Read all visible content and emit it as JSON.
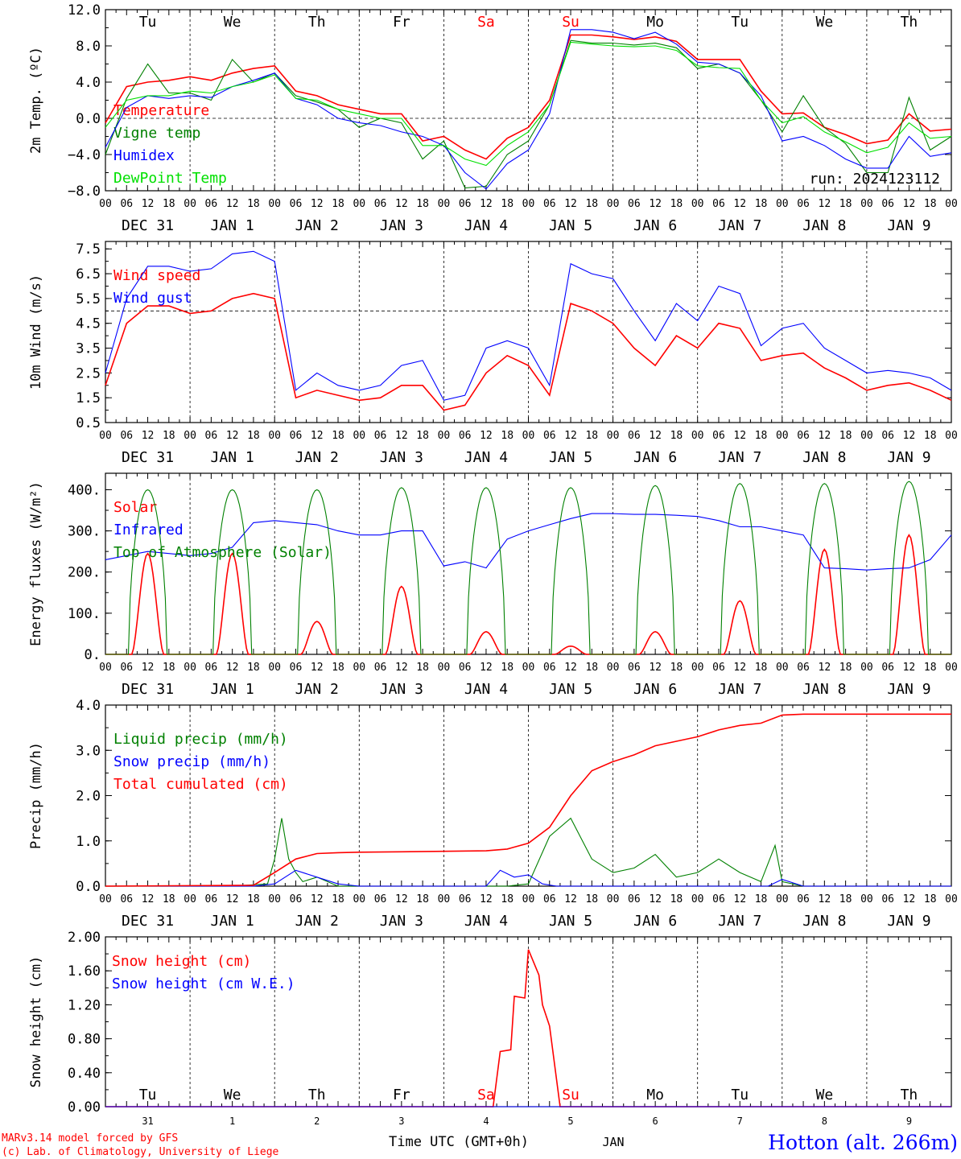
{
  "colors": {
    "red": "#ff0000",
    "green": "#008000",
    "blue": "#0000ff",
    "lime": "#00e000",
    "black": "#000000"
  },
  "days": [
    {
      "date": "DEC 31",
      "abbr": "Tu",
      "num": "31",
      "weekend": false
    },
    {
      "date": "JAN  1",
      "abbr": "We",
      "num": "1",
      "weekend": false
    },
    {
      "date": "JAN  2",
      "abbr": "Th",
      "num": "2",
      "weekend": false
    },
    {
      "date": "JAN  3",
      "abbr": "Fr",
      "num": "3",
      "weekend": false
    },
    {
      "date": "JAN  4",
      "abbr": "Sa",
      "num": "4",
      "weekend": true
    },
    {
      "date": "JAN  5",
      "abbr": "Su",
      "num": "5",
      "weekend": true
    },
    {
      "date": "JAN  6",
      "abbr": "Mo",
      "num": "6",
      "weekend": false
    },
    {
      "date": "JAN  7",
      "abbr": "Tu",
      "num": "7",
      "weekend": false
    },
    {
      "date": "JAN  8",
      "abbr": "We",
      "num": "8",
      "weekend": false
    },
    {
      "date": "JAN  9",
      "abbr": "Th",
      "num": "9",
      "weekend": false
    }
  ],
  "hour_ticks": [
    "00",
    "06",
    "12",
    "18"
  ],
  "run_label": "run: 2024123112",
  "footer": {
    "model": "MARv3.14 model forced by GFS",
    "credit": "(c) Lab. of Climatology, University of Liege",
    "axis_title": "Time UTC (GMT+0h)",
    "month": "JAN",
    "station": "Hotton (alt. 266m)"
  },
  "chart_data": [
    {
      "type": "line",
      "ylabel": "2m Temp. (ºC)",
      "ylim": [
        -8,
        12
      ],
      "yticks": [
        -8,
        -4,
        0,
        4,
        8,
        12
      ],
      "ytick_labels": [
        "−8.0",
        "−4.0",
        "0.0",
        "4.0",
        "8.0",
        "12.0"
      ],
      "ref_line": 0,
      "x": [
        0,
        6,
        12,
        18,
        24,
        30,
        36,
        42,
        48,
        54,
        60,
        66,
        72,
        78,
        84,
        90,
        96,
        102,
        108,
        114,
        120,
        126,
        132,
        138,
        144,
        150,
        156,
        162,
        168,
        174,
        180,
        186,
        192,
        198,
        204,
        210,
        216,
        222,
        228,
        234,
        240
      ],
      "series": [
        {
          "name": "Temperature",
          "color": "#ff0000",
          "values": [
            -0.5,
            3.5,
            4,
            4.2,
            4.6,
            4.2,
            5,
            5.5,
            5.8,
            3,
            2.5,
            1.5,
            1,
            0.5,
            0.5,
            -2.5,
            -2,
            -3.5,
            -4.5,
            -2.2,
            -1,
            2,
            9.2,
            9.2,
            9,
            8.7,
            9,
            8.5,
            6.5,
            6.5,
            6.5,
            3,
            0.5,
            0.6,
            -1,
            -1.8,
            -2.8,
            -2.4,
            0.5,
            -1.4,
            -1.2
          ]
        },
        {
          "name": "Vigne temp",
          "color": "#008000",
          "values": [
            -4,
            2.2,
            6,
            2.8,
            2.8,
            2,
            6.5,
            4,
            5,
            2.5,
            1.8,
            1,
            -1,
            0,
            -0.5,
            -4.5,
            -2.5,
            -7.7,
            -7.5,
            -4,
            -2.5,
            1.5,
            8.6,
            8.3,
            8.3,
            8.1,
            8.3,
            7.8,
            5.5,
            6,
            5,
            2,
            -1.5,
            2.5,
            -1,
            -2.8,
            -6,
            -6,
            2.3,
            -3.5,
            -2
          ]
        },
        {
          "name": "Humidex",
          "color": "#0000ff",
          "values": [
            -3.2,
            1.2,
            2.5,
            2.2,
            2.5,
            2.3,
            3.5,
            4.2,
            5,
            2.2,
            1.5,
            0,
            -0.5,
            -0.8,
            -1.5,
            -2,
            -3,
            -6,
            -7.8,
            -5,
            -3.5,
            0.5,
            9.8,
            9.8,
            9.5,
            8.8,
            9.5,
            8.2,
            6.2,
            6,
            5,
            2.5,
            -2.5,
            -2,
            -3,
            -4.5,
            -5.5,
            -5.5,
            -2,
            -4.2,
            -3.8
          ]
        },
        {
          "name": "DewPoint Temp",
          "color": "#00e000",
          "values": [
            -1,
            2,
            2.5,
            2.5,
            3,
            2.8,
            3.5,
            4,
            4.8,
            2.2,
            2,
            1,
            0.5,
            0,
            0,
            -3,
            -3,
            -4.5,
            -5.2,
            -3,
            -1.5,
            1.5,
            8.4,
            8.2,
            8,
            7.9,
            8,
            7.5,
            5.8,
            5.6,
            5.5,
            2,
            -0.5,
            0.2,
            -1.5,
            -2.6,
            -3.8,
            -3.2,
            -0.5,
            -2.2,
            -2
          ]
        }
      ]
    },
    {
      "type": "line",
      "ylabel": "10m Wind (m/s)",
      "ylim": [
        0.5,
        7.8
      ],
      "yticks": [
        0.5,
        1.5,
        2.5,
        3.5,
        4.5,
        5.5,
        6.5,
        7.5
      ],
      "ytick_labels": [
        "0.5",
        "1.5",
        "2.5",
        "3.5",
        "4.5",
        "5.5",
        "6.5",
        "7.5"
      ],
      "ref_line": 5,
      "x": [
        0,
        6,
        12,
        18,
        24,
        30,
        36,
        42,
        48,
        54,
        60,
        66,
        72,
        78,
        84,
        90,
        96,
        102,
        108,
        114,
        120,
        126,
        132,
        138,
        144,
        150,
        156,
        162,
        168,
        174,
        180,
        186,
        192,
        198,
        204,
        210,
        216,
        222,
        228,
        234,
        240
      ],
      "series": [
        {
          "name": "Wind speed",
          "color": "#ff0000",
          "values": [
            2,
            4.5,
            5.2,
            5.2,
            4.9,
            5,
            5.5,
            5.7,
            5.5,
            1.5,
            1.8,
            1.6,
            1.4,
            1.5,
            2,
            2,
            1,
            1.2,
            2.5,
            3.2,
            2.8,
            1.6,
            5.3,
            5,
            4.5,
            3.5,
            2.8,
            4,
            3.5,
            4.5,
            4.3,
            3,
            3.2,
            3.3,
            2.7,
            2.3,
            1.8,
            2,
            2.1,
            1.8,
            1.4
          ]
        },
        {
          "name": "Wind gust",
          "color": "#0000ff",
          "values": [
            2.5,
            5.5,
            6.8,
            6.8,
            6.6,
            6.7,
            7.3,
            7.4,
            7,
            1.8,
            2.5,
            2,
            1.8,
            2,
            2.8,
            3,
            1.4,
            1.6,
            3.5,
            3.8,
            3.5,
            2,
            6.9,
            6.5,
            6.3,
            5,
            3.8,
            5.3,
            4.6,
            6,
            5.7,
            3.6,
            4.3,
            4.5,
            3.5,
            3,
            2.5,
            2.6,
            2.5,
            2.3,
            1.8
          ]
        }
      ]
    },
    {
      "type": "line",
      "ylabel": "Energy fluxes (W/m²)",
      "ylim": [
        0,
        440
      ],
      "yticks": [
        0,
        100,
        200,
        300,
        400
      ],
      "ytick_labels": [
        "0.",
        "100.",
        "200.",
        "300.",
        "400."
      ],
      "ref_line": null,
      "series": [
        {
          "name": "Solar",
          "color": "#ff0000",
          "peaks": [
            245,
            245,
            80,
            165,
            55,
            20,
            55,
            130,
            255,
            290
          ]
        },
        {
          "name": "Infrared",
          "color": "#0000ff",
          "x": [
            0,
            6,
            12,
            18,
            24,
            30,
            36,
            42,
            48,
            54,
            60,
            66,
            72,
            78,
            84,
            90,
            96,
            102,
            108,
            114,
            120,
            126,
            132,
            138,
            144,
            150,
            156,
            162,
            168,
            174,
            180,
            186,
            192,
            198,
            204,
            210,
            216,
            222,
            228,
            234,
            240
          ],
          "values": [
            230,
            240,
            250,
            245,
            240,
            245,
            260,
            320,
            325,
            320,
            315,
            300,
            290,
            290,
            300,
            300,
            215,
            225,
            210,
            280,
            300,
            315,
            330,
            342,
            342,
            340,
            340,
            338,
            335,
            325,
            310,
            310,
            300,
            290,
            210,
            208,
            205,
            208,
            210,
            230,
            290
          ]
        },
        {
          "name": "Top of Atmosphere (Solar)",
          "color": "#008000",
          "peaks": [
            400,
            400,
            400,
            405,
            405,
            405,
            410,
            415,
            415,
            420
          ]
        }
      ]
    },
    {
      "type": "line",
      "ylabel": "Precip (mm/h)",
      "ylim": [
        0,
        4
      ],
      "yticks": [
        0,
        1,
        2,
        3,
        4
      ],
      "ytick_labels": [
        "0.0",
        "1.0",
        "2.0",
        "3.0",
        "4.0"
      ],
      "ref_line": null,
      "series": [
        {
          "name": "Liquid precip (mm/h)",
          "color": "#008000",
          "x": [
            0,
            36,
            46,
            48,
            50,
            52,
            54,
            56,
            60,
            66,
            72,
            90,
            114,
            120,
            126,
            132,
            138,
            144,
            150,
            156,
            162,
            168,
            174,
            180,
            186,
            190,
            192,
            198,
            240
          ],
          "values": [
            0,
            0,
            0.05,
            0.6,
            1.5,
            0.6,
            0.3,
            0.1,
            0.2,
            0,
            0,
            0,
            0,
            0.05,
            1.1,
            1.5,
            0.6,
            0.3,
            0.4,
            0.7,
            0.2,
            0.3,
            0.6,
            0.3,
            0.1,
            0.9,
            0.1,
            0,
            0
          ]
        },
        {
          "name": "Snow precip (mm/h)",
          "color": "#0000ff",
          "x": [
            0,
            42,
            48,
            54,
            60,
            66,
            72,
            108,
            112,
            116,
            120,
            124,
            128,
            188,
            192,
            198,
            240
          ],
          "values": [
            0,
            0,
            0.05,
            0.35,
            0.2,
            0.05,
            0,
            0,
            0.35,
            0.2,
            0.25,
            0.05,
            0,
            0,
            0.15,
            0,
            0
          ]
        },
        {
          "name": "Total cumulated (cm)",
          "color": "#ff0000",
          "x": [
            0,
            42,
            48,
            54,
            60,
            66,
            72,
            84,
            96,
            108,
            114,
            120,
            126,
            132,
            138,
            144,
            150,
            156,
            162,
            168,
            174,
            180,
            186,
            192,
            198,
            240
          ],
          "values": [
            0,
            0.02,
            0.3,
            0.6,
            0.72,
            0.74,
            0.75,
            0.76,
            0.77,
            0.78,
            0.82,
            0.95,
            1.3,
            2,
            2.55,
            2.75,
            2.9,
            3.1,
            3.2,
            3.3,
            3.45,
            3.55,
            3.6,
            3.78,
            3.8,
            3.8
          ]
        }
      ]
    },
    {
      "type": "line",
      "ylabel": "Snow height (cm)",
      "ylim": [
        0,
        2
      ],
      "yticks": [
        0,
        0.4,
        0.8,
        1.2,
        1.6,
        2
      ],
      "ytick_labels": [
        "0.00",
        "0.40",
        "0.80",
        "1.20",
        "1.60",
        "2.00"
      ],
      "ref_line": null,
      "series": [
        {
          "name": "Snow height (cm)",
          "color": "#ff0000",
          "x": [
            0,
            110,
            112,
            115,
            116,
            119,
            120,
            123,
            124,
            126,
            129,
            130,
            240
          ],
          "values": [
            0,
            0,
            0.65,
            0.67,
            1.3,
            1.28,
            1.85,
            1.55,
            1.2,
            0.95,
            0,
            0,
            0
          ]
        },
        {
          "name": "Snow height (cm W.E.)",
          "color": "#0000ff",
          "x": [
            0,
            240
          ],
          "values": [
            0,
            0
          ]
        }
      ]
    }
  ]
}
